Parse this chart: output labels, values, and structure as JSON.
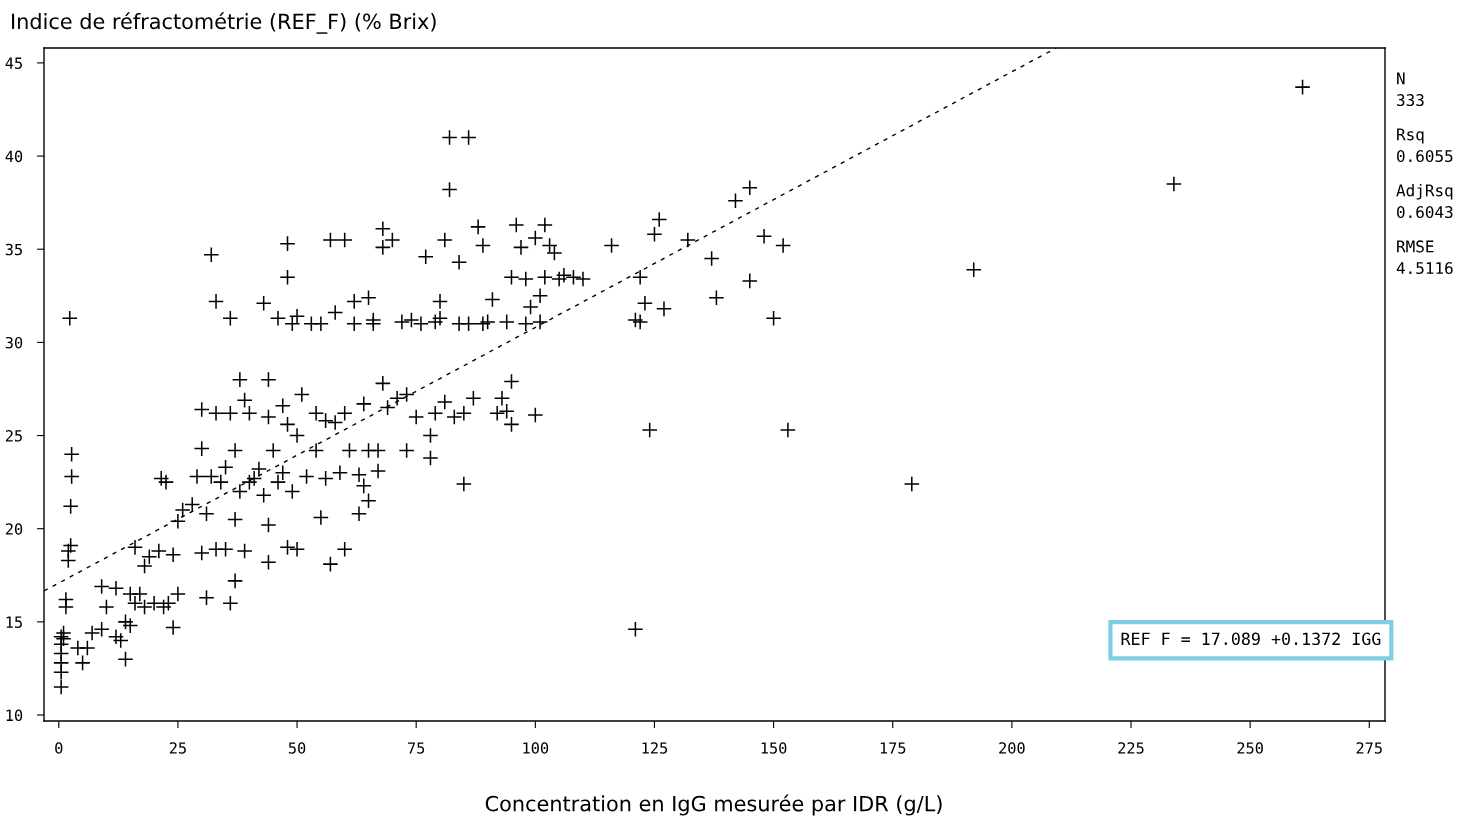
{
  "chart_data": {
    "type": "scatter",
    "ylabel": "Indice de réfractométrie (REF_F) (% Brix)",
    "xlabel": "Concentration en IgG mesurée par IDR (g/L)",
    "xlim": [
      -3.1,
      278.3
    ],
    "ylim": [
      9.68,
      45.8
    ],
    "xticks": [
      0,
      25,
      50,
      75,
      100,
      125,
      150,
      175,
      200,
      225,
      250,
      275
    ],
    "yticks": [
      10,
      15,
      20,
      25,
      30,
      35,
      40,
      45
    ],
    "grid": false,
    "marker": "cross",
    "annotations": [
      "N\n333",
      "Rsq\n0.6055",
      "AdjRsq\n0.6043",
      "RMSE\n4.5116",
      "REF F = 17.089 +0.1372 IGG"
    ],
    "series": [
      {
        "color": "#000000",
        "x": [
          0.5,
          0.5,
          0.5,
          0.5,
          0.5,
          0.5,
          1,
          1,
          1.5,
          1.5,
          2,
          2,
          2.5,
          2.5,
          2.7,
          2.7,
          2.3,
          4,
          5,
          6,
          7,
          9,
          9,
          10,
          12,
          12,
          13,
          14,
          14,
          15,
          15,
          16,
          16,
          17,
          18,
          18,
          19,
          20,
          21,
          22,
          21.5,
          22.5,
          23,
          24,
          24,
          25,
          25,
          26,
          28,
          29,
          30,
          30,
          30,
          31,
          31,
          32,
          32,
          33,
          33,
          33,
          34,
          35,
          35,
          36,
          36,
          36,
          37,
          37,
          37,
          38,
          38,
          39,
          39,
          40,
          40,
          41,
          42,
          43,
          43,
          44,
          44,
          44,
          44,
          45,
          46,
          46,
          47,
          47,
          48,
          48,
          48,
          48,
          49,
          49,
          50,
          50,
          50,
          51,
          52,
          53,
          54,
          54,
          55,
          55,
          56,
          56,
          57,
          57,
          58,
          58,
          59,
          60,
          60,
          60,
          61,
          62,
          62,
          63,
          63,
          64,
          64,
          65,
          65,
          65,
          66,
          66,
          67,
          67,
          68,
          68,
          68,
          69,
          70,
          71,
          72,
          73,
          73,
          74,
          75,
          76,
          77,
          78,
          78,
          79,
          79,
          80,
          80,
          81,
          81,
          82,
          82,
          83,
          84,
          84,
          85,
          85,
          86,
          86,
          87,
          88,
          89,
          89,
          90,
          91,
          92,
          93,
          94,
          94,
          95,
          95,
          95,
          96,
          97,
          98,
          98,
          99,
          100,
          100,
          101,
          101,
          102,
          102,
          103,
          104,
          105,
          106,
          108,
          110,
          116,
          121,
          122,
          122,
          123,
          124,
          125,
          126,
          127,
          132,
          137,
          138,
          142,
          145,
          145,
          148,
          150,
          152,
          153,
          121,
          179,
          192,
          234,
          261
        ],
        "values": [
          11.5,
          12.3,
          12.8,
          13.3,
          13.8,
          14.2,
          14.4,
          14.1,
          15.8,
          16.2,
          18.3,
          18.8,
          19.1,
          21.2,
          22.8,
          24,
          31.3,
          13.6,
          12.8,
          13.6,
          14.4,
          14.6,
          16.9,
          15.8,
          14.2,
          16.8,
          14,
          13,
          15,
          16.5,
          14.8,
          16,
          19,
          16.5,
          15.8,
          18,
          18.5,
          16,
          18.8,
          15.8,
          22.7,
          22.5,
          16,
          18.6,
          14.7,
          16.5,
          20.4,
          21,
          21.3,
          22.8,
          24.3,
          26.4,
          18.7,
          16.3,
          20.8,
          22.8,
          34.7,
          32.2,
          18.9,
          26.2,
          22.5,
          23.3,
          18.9,
          16,
          26.2,
          31.3,
          17.2,
          20.5,
          24.2,
          28,
          22,
          26.9,
          18.8,
          22.5,
          26.2,
          22.7,
          23.2,
          32.1,
          21.8,
          26,
          28,
          18.2,
          20.2,
          24.2,
          22.5,
          31.3,
          23,
          26.6,
          25.6,
          19,
          33.5,
          35.3,
          31,
          22,
          31.4,
          25,
          18.9,
          27.2,
          22.8,
          31,
          24.2,
          26.2,
          31,
          20.6,
          22.7,
          25.8,
          35.5,
          18.1,
          31.6,
          25.7,
          23,
          35.5,
          26.2,
          18.9,
          24.2,
          32.2,
          31,
          22.9,
          20.8,
          22.3,
          26.7,
          32.4,
          21.5,
          24.2,
          31.2,
          31,
          24.2,
          23.1,
          36.1,
          35.1,
          27.8,
          26.5,
          35.5,
          27,
          31.1,
          27.2,
          24.2,
          31.2,
          26,
          31,
          34.6,
          25,
          23.8,
          31.1,
          26.2,
          32.2,
          31.3,
          35.5,
          26.8,
          41,
          38.2,
          26,
          34.3,
          31,
          22.4,
          26.2,
          31,
          41,
          27,
          36.2,
          31,
          35.2,
          31.1,
          32.3,
          26.2,
          27,
          31.1,
          26.3,
          33.5,
          27.9,
          25.6,
          36.3,
          35.1,
          31,
          33.4,
          31.9,
          26.1,
          35.6,
          32.5,
          31.1,
          33.5,
          36.3,
          35.2,
          34.8,
          33.4,
          33.6,
          33.5,
          33.4,
          35.2,
          31.2,
          31.1,
          33.5,
          32.1,
          25.3,
          35.8,
          36.6,
          31.8,
          35.5,
          34.5,
          32.4,
          37.6,
          33.3,
          38.3,
          35.7,
          31.3,
          35.2,
          25.3,
          14.6,
          22.4,
          33.9,
          38.5,
          43.7
        ]
      },
      {
        "type": "line",
        "color": "#000000",
        "line_style": "dashed",
        "marker": "none",
        "x": [
          -3.1,
          209.3
        ],
        "values": [
          16.66,
          45.8
        ]
      }
    ]
  }
}
